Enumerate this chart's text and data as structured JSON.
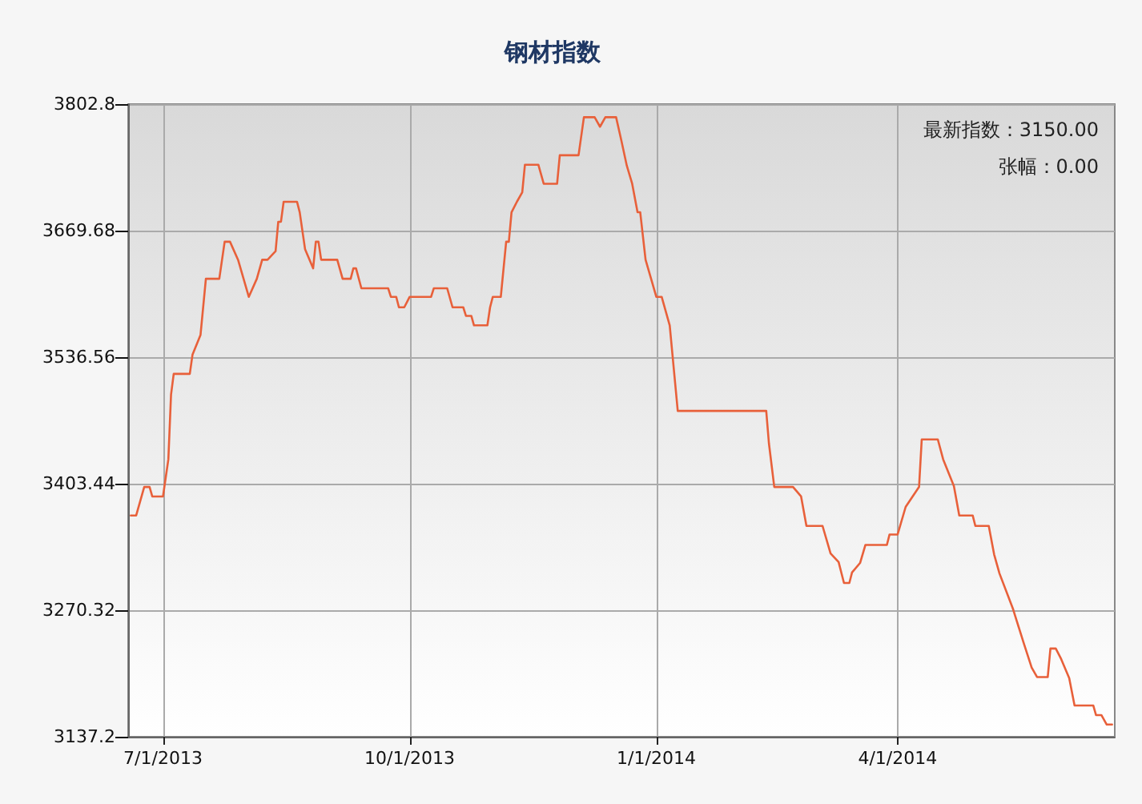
{
  "chart_data": {
    "type": "line",
    "title": "钢材指数",
    "annotations": [
      "最新指数：3150.00",
      "张幅：0.00"
    ],
    "x": [
      "2013-06-19",
      "2013-06-21",
      "2013-06-24",
      "2013-06-26",
      "2013-06-27",
      "2013-07-01",
      "2013-07-03",
      "2013-07-04",
      "2013-07-05",
      "2013-07-11",
      "2013-07-12",
      "2013-07-15",
      "2013-07-17",
      "2013-07-22",
      "2013-07-24",
      "2013-07-26",
      "2013-07-29",
      "2013-08-02",
      "2013-08-05",
      "2013-08-07",
      "2013-08-09",
      "2013-08-12",
      "2013-08-13",
      "2013-08-14",
      "2013-08-15",
      "2013-08-20",
      "2013-08-21",
      "2013-08-23",
      "2013-08-26",
      "2013-08-27",
      "2013-08-28",
      "2013-08-29",
      "2013-09-04",
      "2013-09-06",
      "2013-09-09",
      "2013-09-10",
      "2013-09-11",
      "2013-09-13",
      "2013-09-23",
      "2013-09-24",
      "2013-09-26",
      "2013-09-27",
      "2013-09-29",
      "2013-10-01",
      "2013-10-09",
      "2013-10-10",
      "2013-10-15",
      "2013-10-17",
      "2013-10-21",
      "2013-10-22",
      "2013-10-24",
      "2013-10-25",
      "2013-10-30",
      "2013-10-31",
      "2013-11-01",
      "2013-11-04",
      "2013-11-06",
      "2013-11-07",
      "2013-11-08",
      "2013-11-10",
      "2013-11-12",
      "2013-11-13",
      "2013-11-18",
      "2013-11-20",
      "2013-11-25",
      "2013-11-26",
      "2013-12-03",
      "2013-12-05",
      "2013-12-09",
      "2013-12-11",
      "2013-12-13",
      "2013-12-17",
      "2013-12-19",
      "2013-12-21",
      "2013-12-23",
      "2013-12-25",
      "2013-12-26",
      "2013-12-28",
      "2014-01-01",
      "2014-01-03",
      "2014-01-06",
      "2014-01-09",
      "2014-02-11",
      "2014-02-12",
      "2014-02-14",
      "2014-02-21",
      "2014-02-24",
      "2014-02-26",
      "2014-03-04",
      "2014-03-07",
      "2014-03-10",
      "2014-03-12",
      "2014-03-14",
      "2014-03-15",
      "2014-03-18",
      "2014-03-20",
      "2014-03-28",
      "2014-03-29",
      "2014-04-01",
      "2014-04-04",
      "2014-04-09",
      "2014-04-10",
      "2014-04-16",
      "2014-04-18",
      "2014-04-22",
      "2014-04-24",
      "2014-04-29",
      "2014-04-30",
      "2014-05-05",
      "2014-05-07",
      "2014-05-09",
      "2014-05-14",
      "2014-05-18",
      "2014-05-21",
      "2014-05-23",
      "2014-05-27",
      "2014-05-28",
      "2014-05-30",
      "2014-06-01",
      "2014-06-04",
      "2014-06-06",
      "2014-06-13",
      "2014-06-14",
      "2014-06-16",
      "2014-06-18",
      "2014-06-20"
    ],
    "series": [
      {
        "color": "#e8603a",
        "values": [
          3370,
          3370,
          3400,
          3400,
          3390,
          3390,
          3429,
          3497,
          3519,
          3519,
          3539,
          3560,
          3619,
          3619,
          3658,
          3658,
          3639,
          3600,
          3619,
          3639,
          3639,
          3648,
          3679,
          3679,
          3700,
          3700,
          3689,
          3650,
          3630,
          3658,
          3658,
          3639,
          3639,
          3619,
          3619,
          3630,
          3630,
          3609,
          3609,
          3600,
          3600,
          3589,
          3589,
          3600,
          3600,
          3609,
          3609,
          3589,
          3589,
          3580,
          3580,
          3570,
          3570,
          3589,
          3600,
          3600,
          3658,
          3658,
          3689,
          3700,
          3710,
          3739,
          3739,
          3719,
          3719,
          3749,
          3749,
          3789,
          3789,
          3779,
          3789,
          3789,
          3764,
          3738,
          3719,
          3689,
          3689,
          3639,
          3600,
          3600,
          3570,
          3480,
          3480,
          3446,
          3400,
          3400,
          3390,
          3359,
          3359,
          3330,
          3321,
          3299,
          3299,
          3310,
          3320,
          3339,
          3339,
          3350,
          3350,
          3379,
          3400,
          3450,
          3450,
          3429,
          3401,
          3370,
          3370,
          3359,
          3359,
          3329,
          3309,
          3272,
          3236,
          3210,
          3200,
          3200,
          3230,
          3230,
          3219,
          3199,
          3170,
          3170,
          3160,
          3160,
          3150,
          3150
        ]
      }
    ],
    "xlim": [
      "2013-06-18",
      "2014-06-21"
    ],
    "xticks": [
      {
        "value": "2013-07-01",
        "label": "7/1/2013"
      },
      {
        "value": "2013-10-01",
        "label": "10/1/2013"
      },
      {
        "value": "2014-01-01",
        "label": "1/1/2014"
      },
      {
        "value": "2014-04-01",
        "label": "4/1/2014"
      }
    ],
    "ylim": [
      3137.2,
      3802.8
    ],
    "yticks": [
      3137.2,
      3270.32,
      3403.44,
      3536.56,
      3669.68,
      3802.8
    ],
    "grid": true,
    "marker": "none",
    "line_style": "solid"
  }
}
